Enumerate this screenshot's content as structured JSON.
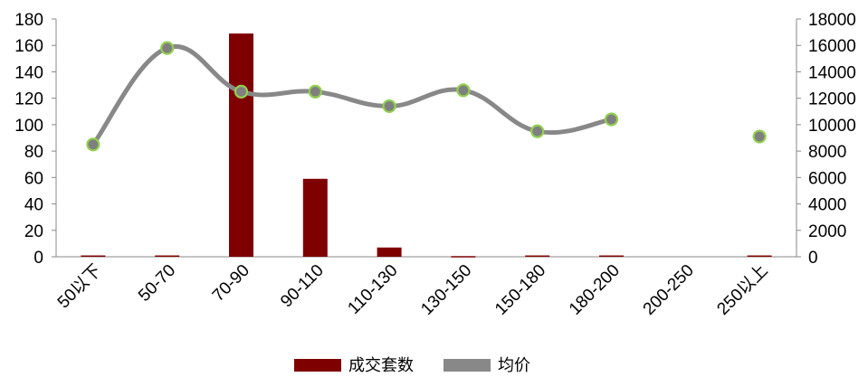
{
  "chart_data": {
    "type": "bar",
    "categories": [
      "50以下",
      "50-70",
      "70-90",
      "90-110",
      "110-130",
      "130-150",
      "150-180",
      "180-200",
      "200-250",
      "250以上"
    ],
    "series": [
      {
        "name": "成交套数",
        "type": "bar",
        "axis": "left",
        "color": "#7f0000",
        "values": [
          1,
          1,
          169,
          59,
          7,
          0.5,
          1,
          1,
          0,
          1
        ]
      },
      {
        "name": "均价",
        "type": "line",
        "axis": "right",
        "color": "#888888",
        "marker_fill": "#92d050",
        "values": [
          8500,
          15800,
          12500,
          12500,
          11400,
          12600,
          9500,
          10400,
          null,
          9100
        ]
      }
    ],
    "y_left": {
      "ylim": [
        0,
        180
      ],
      "ticks": [
        "0",
        "20",
        "40",
        "60",
        "80",
        "100",
        "120",
        "140",
        "160",
        "180"
      ]
    },
    "y_right": {
      "ylim": [
        0,
        18000
      ],
      "ticks": [
        "0",
        "2000",
        "4000",
        "6000",
        "8000",
        "10000",
        "12000",
        "14000",
        "16000",
        "18000"
      ]
    },
    "legend": {
      "position": "bottom-center",
      "labels": [
        "成交套数",
        "均价"
      ]
    },
    "grid": false,
    "title": ""
  }
}
